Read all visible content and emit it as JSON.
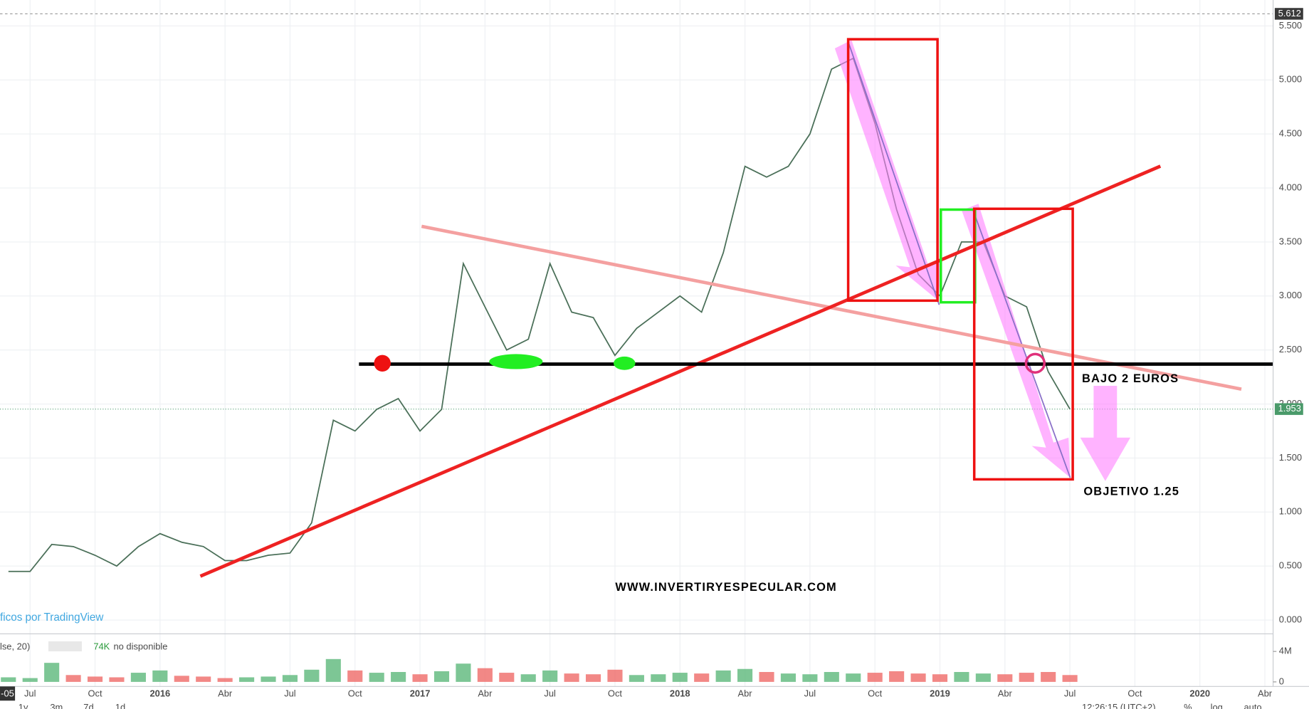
{
  "chart_data": {
    "type": "line",
    "categories": [
      null,
      "Jul",
      null,
      null,
      "Oct",
      null,
      null,
      "2016",
      null,
      null,
      "Abr",
      null,
      null,
      "Jul",
      null,
      null,
      "Oct",
      null,
      null,
      "2017",
      null,
      null,
      "Abr",
      null,
      null,
      "Jul",
      null,
      null,
      "Oct",
      null,
      null,
      "2018",
      null,
      null,
      "Abr",
      null,
      null,
      "Jul",
      null,
      null,
      "Oct",
      null,
      null,
      "2019",
      null,
      null,
      "Abr",
      null,
      null,
      "Jul",
      null,
      null,
      "Oct",
      null,
      null,
      "2020",
      null,
      null,
      "Abr"
    ],
    "values": [
      0.45,
      0.45,
      0.7,
      0.68,
      0.6,
      0.5,
      0.68,
      0.8,
      0.72,
      0.68,
      0.55,
      0.55,
      0.6,
      0.62,
      0.9,
      1.85,
      1.75,
      1.95,
      2.05,
      1.75,
      1.95,
      3.3,
      2.9,
      2.5,
      2.6,
      3.3,
      2.85,
      2.8,
      2.45,
      2.7,
      2.85,
      3.0,
      2.85,
      3.4,
      4.2,
      4.1,
      4.2,
      4.5,
      5.1,
      5.2,
      4.6,
      3.8,
      3.2,
      3.0,
      3.5,
      3.5,
      3.0,
      2.9,
      2.3,
      1.953,
      null,
      null,
      null,
      null,
      null,
      null,
      null,
      null,
      null
    ],
    "color": "#4a6f58",
    "ylim": [
      -0.12,
      5.74
    ],
    "yticks": [
      {
        "value": 0,
        "label": "0.000"
      },
      {
        "value": 0.5,
        "label": "0.500"
      },
      {
        "value": 1,
        "label": "1.000"
      },
      {
        "value": 1.5,
        "label": "1.500"
      },
      {
        "value": 2,
        "label": "2.000"
      },
      {
        "value": 2.5,
        "label": "2.500"
      },
      {
        "value": 3,
        "label": "3.000"
      },
      {
        "value": 3.5,
        "label": "3.500"
      },
      {
        "value": 4,
        "label": "4.000"
      },
      {
        "value": 4.5,
        "label": "4.500"
      },
      {
        "value": 5,
        "label": "5.000"
      },
      {
        "value": 5.5,
        "label": "5.500"
      }
    ],
    "grid": true,
    "high": 5.612,
    "last": 1.953,
    "annotations": [
      "BAJO 2 EUROS",
      "OBJETIVO 1.25",
      "WWW.INVERTIRYESPECULAR.COM"
    ],
    "watermark": "ficos por TradingView",
    "partial_x_label": "-05",
    "volume": {
      "legend": "lse, 20)",
      "last_label": "74K",
      "status": "no disponible",
      "up_color": "#5cb87a",
      "down_color": "#ef6a68",
      "values": [
        600000,
        500000,
        2500000,
        900000,
        700000,
        600000,
        1200000,
        1500000,
        800000,
        700000,
        500000,
        600000,
        700000,
        900000,
        1600000,
        3000000,
        1500000,
        1200000,
        1300000,
        1000000,
        1400000,
        2400000,
        1800000,
        1200000,
        1000000,
        1500000,
        1100000,
        1000000,
        1600000,
        900000,
        1000000,
        1200000,
        1100000,
        1500000,
        1700000,
        1300000,
        1100000,
        1000000,
        1300000,
        1100000,
        1200000,
        1400000,
        1100000,
        1000000,
        1300000,
        1100000,
        1000000,
        1200000,
        1300000,
        900000,
        null,
        null,
        null,
        null,
        null,
        null,
        null,
        null,
        null
      ],
      "ylim": [
        -600000,
        6200000
      ],
      "yticks": [
        0,
        {
          "value": 4000000,
          "label": "4M"
        }
      ]
    },
    "toolbar": [
      "1y",
      "3m",
      "7d",
      "1d",
      "12:26:15 (UTC+2)",
      "%",
      "log",
      "auto"
    ]
  }
}
